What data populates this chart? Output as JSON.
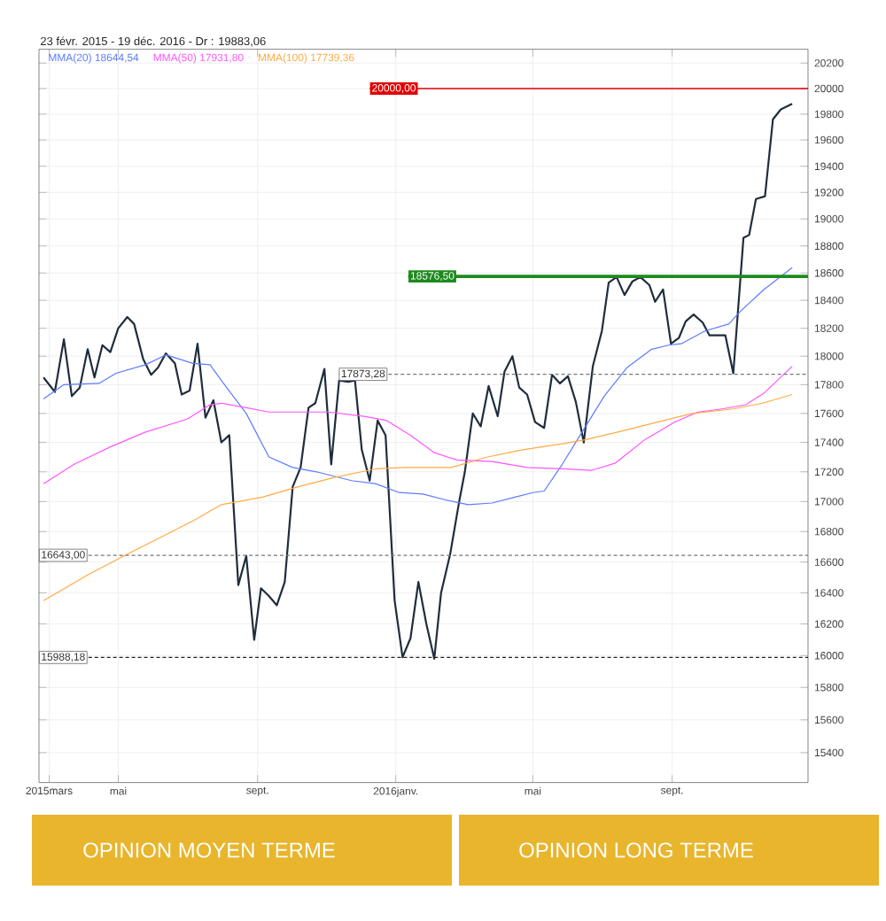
{
  "chart_data": {
    "type": "line",
    "title": "23 févr. 2015 - 19 déc. 2016 - Dr : 19883,06",
    "log": "y",
    "grid": true,
    "legend": "top left",
    "marker": "none",
    "xlim": [
      "2015-02-20",
      "2016-12-30"
    ],
    "xticks": [
      {
        "value": "2015-03-01",
        "label": "2015mars"
      },
      {
        "value": "2015-05-01",
        "label": "mai"
      },
      {
        "value": "2015-09-01",
        "label": "sept."
      },
      {
        "value": "2016-01-01",
        "label": "2016janv."
      },
      {
        "value": "2016-05-01",
        "label": "mai"
      },
      {
        "value": "2016-09-01",
        "label": "sept."
      }
    ],
    "ylim": [
      15220,
      20310
    ],
    "yticks": [
      15400,
      15600,
      15800,
      16000,
      16200,
      16400,
      16600,
      16800,
      17000,
      17200,
      17400,
      17600,
      17800,
      18000,
      18200,
      18400,
      18600,
      18800,
      19000,
      19200,
      19400,
      19600,
      19800,
      20000,
      20200
    ],
    "series": [
      {
        "color": "#1f2d3d",
        "x": [
          "2015-02-24",
          "2015-03-06",
          "2015-03-14",
          "2015-03-21",
          "2015-03-28",
          "2015-04-04",
          "2015-04-10",
          "2015-04-17",
          "2015-04-24",
          "2015-05-01",
          "2015-05-09",
          "2015-05-15",
          "2015-05-23",
          "2015-05-30",
          "2015-06-05",
          "2015-06-12",
          "2015-06-20",
          "2015-06-26",
          "2015-07-03",
          "2015-07-10",
          "2015-07-17",
          "2015-07-24",
          "2015-07-31",
          "2015-08-07",
          "2015-08-15",
          "2015-08-22",
          "2015-08-29",
          "2015-09-04",
          "2015-09-11",
          "2015-09-18",
          "2015-09-25",
          "2015-10-02",
          "2015-10-09",
          "2015-10-16",
          "2015-10-22",
          "2015-10-30",
          "2015-11-05",
          "2015-11-12",
          "2015-11-20",
          "2015-11-26",
          "2015-12-02",
          "2015-12-09",
          "2015-12-16",
          "2015-12-23",
          "2015-12-31",
          "2016-01-07",
          "2016-01-14",
          "2016-01-21",
          "2016-01-28",
          "2016-02-04",
          "2016-02-10",
          "2016-02-18",
          "2016-02-26",
          "2016-03-02",
          "2016-03-09",
          "2016-03-16",
          "2016-03-23",
          "2016-03-31",
          "2016-04-06",
          "2016-04-13",
          "2016-04-19",
          "2016-04-26",
          "2016-05-03",
          "2016-05-11",
          "2016-05-18",
          "2016-05-25",
          "2016-06-01",
          "2016-06-08",
          "2016-06-15",
          "2016-06-23",
          "2016-07-01",
          "2016-07-07",
          "2016-07-14",
          "2016-07-21",
          "2016-07-28",
          "2016-08-04",
          "2016-08-12",
          "2016-08-17",
          "2016-08-24",
          "2016-08-31",
          "2016-09-07",
          "2016-09-13",
          "2016-09-20",
          "2016-09-28",
          "2016-10-04",
          "2016-10-11",
          "2016-10-18",
          "2016-10-25",
          "2016-11-03",
          "2016-11-08",
          "2016-11-14",
          "2016-11-22",
          "2016-11-29",
          "2016-12-06",
          "2016-12-16"
        ],
        "values": [
          17850,
          17750,
          18120,
          17720,
          17780,
          18050,
          17850,
          18080,
          18030,
          18200,
          18280,
          18230,
          17980,
          17870,
          17920,
          18020,
          17950,
          17730,
          17760,
          18090,
          17570,
          17690,
          17400,
          17450,
          16450,
          16640,
          16100,
          16430,
          16380,
          16320,
          16470,
          17100,
          17230,
          17640,
          17670,
          17910,
          17250,
          17830,
          17820,
          17830,
          17350,
          17140,
          17550,
          17450,
          16350,
          15990,
          16110,
          16470,
          16200,
          15980,
          16400,
          16650,
          17000,
          17200,
          17600,
          17510,
          17790,
          17580,
          17890,
          18000,
          17780,
          17730,
          17540,
          17500,
          17870,
          17810,
          17860,
          17680,
          17400,
          17930,
          18180,
          18530,
          18570,
          18440,
          18540,
          18570,
          18510,
          18390,
          18480,
          18090,
          18130,
          18250,
          18300,
          18240,
          18150,
          18150,
          18150,
          17880,
          18860,
          18880,
          19150,
          19170,
          19760,
          19840,
          19880
        ]
      },
      {
        "name": "MMA(20)  18644,54",
        "color": "#5b7bff",
        "x": [
          "2015-02-24",
          "2015-03-14",
          "2015-04-14",
          "2015-04-29",
          "2015-05-25",
          "2015-06-12",
          "2015-07-06",
          "2015-07-21",
          "2015-07-31",
          "2015-08-22",
          "2015-09-11",
          "2015-10-02",
          "2015-10-23",
          "2015-11-23",
          "2015-12-14",
          "2016-01-04",
          "2016-01-25",
          "2016-02-14",
          "2016-03-05",
          "2016-03-26",
          "2016-04-16",
          "2016-05-01",
          "2016-05-11",
          "2016-05-27",
          "2016-06-11",
          "2016-07-03",
          "2016-07-23",
          "2016-08-14",
          "2016-08-29",
          "2016-09-09",
          "2016-09-30",
          "2016-10-21",
          "2016-10-31",
          "2016-11-21",
          "2016-12-16"
        ],
        "values": [
          17700,
          17800,
          17810,
          17880,
          17940,
          18010,
          17950,
          17940,
          17830,
          17600,
          17300,
          17230,
          17200,
          17140,
          17120,
          17060,
          17050,
          17010,
          16980,
          16990,
          17030,
          17060,
          17070,
          17250,
          17440,
          17720,
          17920,
          18050,
          18080,
          18090,
          18180,
          18230,
          18320,
          18480,
          18640
        ]
      },
      {
        "name": "MMA(50)  17931,80",
        "color": "#ff55ff",
        "x": [
          "2015-02-24",
          "2015-03-23",
          "2015-04-24",
          "2015-05-25",
          "2015-07-01",
          "2015-07-21",
          "2015-07-31",
          "2015-08-22",
          "2015-09-11",
          "2015-11-02",
          "2015-12-04",
          "2015-12-24",
          "2016-01-14",
          "2016-02-04",
          "2016-02-24",
          "2016-03-26",
          "2016-04-26",
          "2016-05-27",
          "2016-06-22",
          "2016-07-13",
          "2016-08-08",
          "2016-09-03",
          "2016-09-24",
          "2016-10-15",
          "2016-11-05",
          "2016-11-21",
          "2016-12-16"
        ],
        "values": [
          17120,
          17250,
          17370,
          17470,
          17560,
          17660,
          17670,
          17640,
          17610,
          17610,
          17580,
          17550,
          17450,
          17330,
          17280,
          17270,
          17230,
          17220,
          17210,
          17260,
          17420,
          17540,
          17610,
          17630,
          17660,
          17740,
          17930
        ]
      },
      {
        "name": "MMA(100)  17739,36",
        "color": "#ffaa44",
        "x": [
          "2015-02-24",
          "2015-04-05",
          "2015-05-06",
          "2015-06-12",
          "2015-07-08",
          "2015-07-31",
          "2015-09-06",
          "2015-10-07",
          "2015-11-07",
          "2015-12-14",
          "2016-01-09",
          "2016-02-19",
          "2016-03-22",
          "2016-04-22",
          "2016-05-27",
          "2016-06-17",
          "2016-07-19",
          "2016-08-19",
          "2016-09-19",
          "2016-10-25",
          "2016-11-20",
          "2016-12-16"
        ],
        "values": [
          16350,
          16520,
          16640,
          16780,
          16880,
          16980,
          17030,
          17100,
          17160,
          17220,
          17230,
          17230,
          17300,
          17350,
          17390,
          17420,
          17480,
          17540,
          17600,
          17630,
          17670,
          17730
        ]
      }
    ],
    "ref_lines": [
      {
        "axis": "y",
        "value": 20000,
        "label": "20000,00",
        "color": "#e00000",
        "line_style": "solid"
      },
      {
        "axis": "y",
        "value": 18576.5,
        "label": "18576,50",
        "color": "#1e8a1e",
        "line_style": "solid"
      },
      {
        "axis": "y",
        "value": 17873.28,
        "label": "17873,28",
        "color": "#777777",
        "line_style": "dashed"
      },
      {
        "axis": "y",
        "value": 16643,
        "label": "16643,00",
        "color": "#777777",
        "line_style": "dashed"
      },
      {
        "axis": "y",
        "value": 15988.18,
        "label": "15988,18",
        "color": "#222222",
        "line_style": "dashed"
      }
    ],
    "annotations": [
      "OPINION MOYEN TERME",
      "OPINION LONG TERME"
    ]
  }
}
